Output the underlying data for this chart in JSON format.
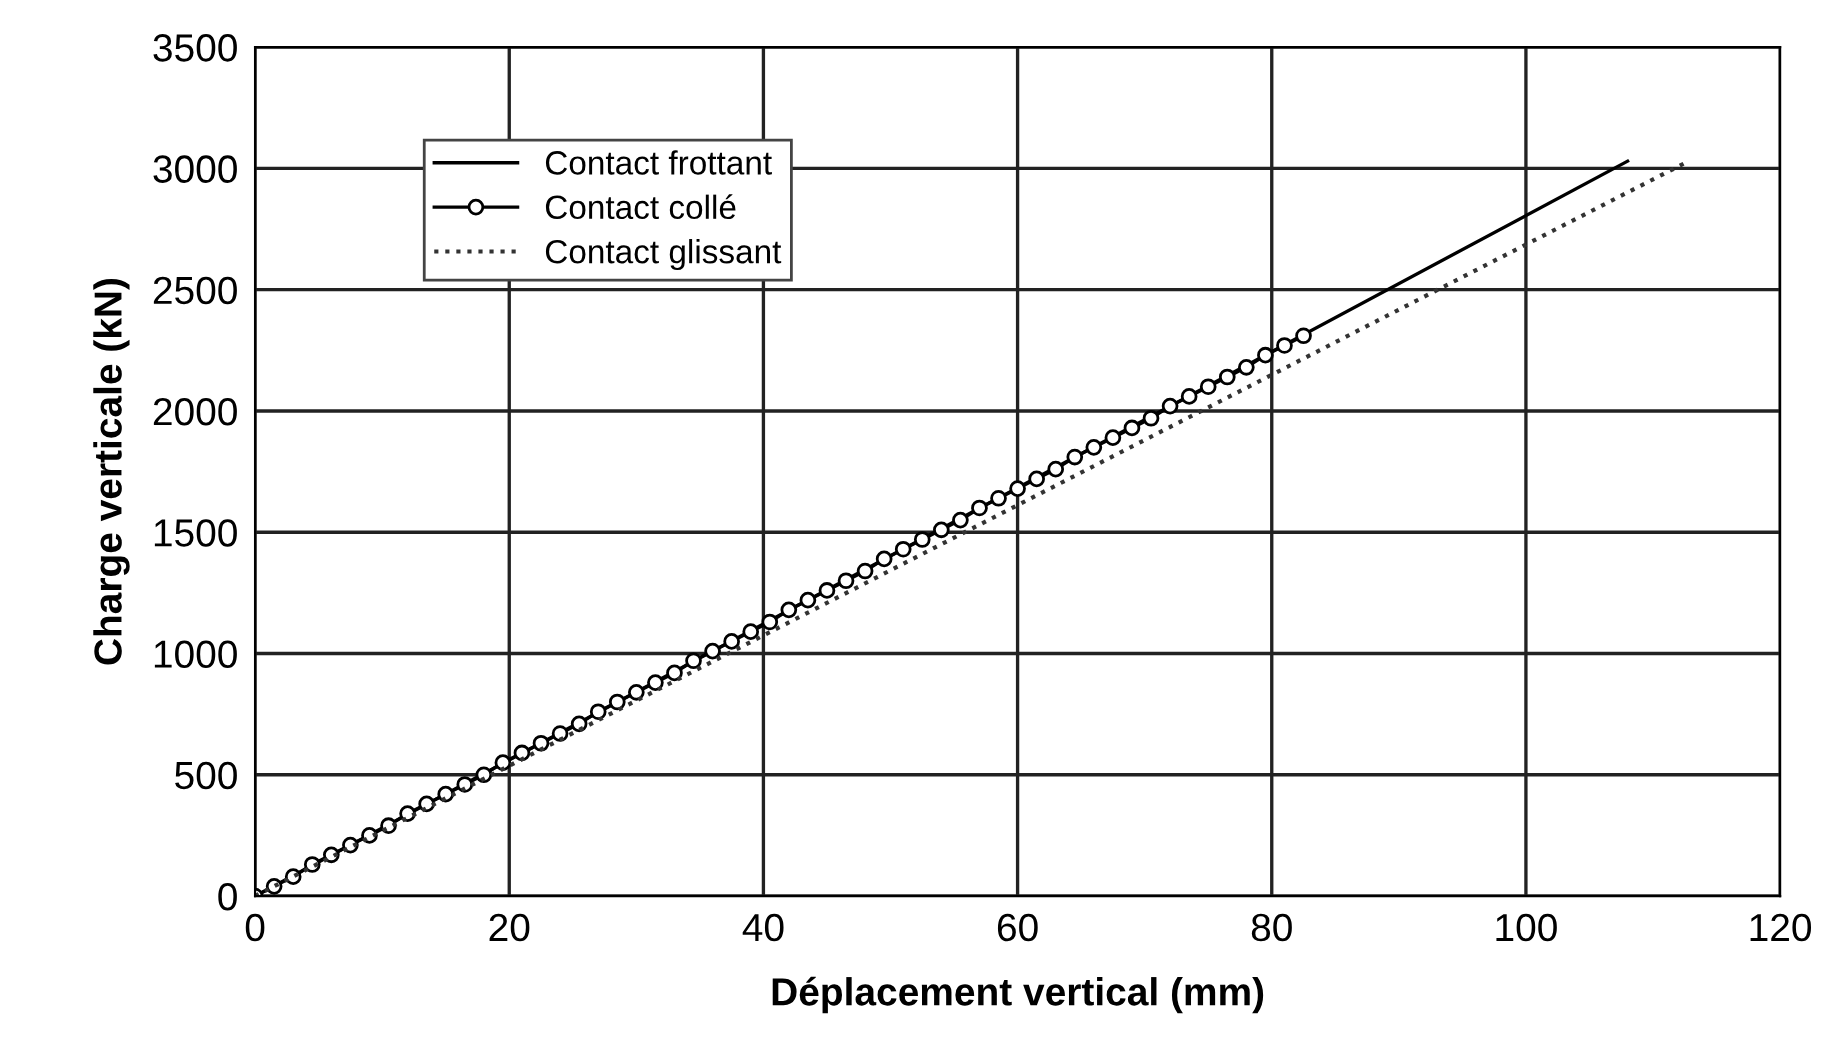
{
  "chart_data": {
    "type": "line",
    "xlabel": "Déplacement vertical (mm)",
    "ylabel": "Charge verticale (kN)",
    "xlim": [
      0,
      120
    ],
    "xticks": [
      0,
      20,
      40,
      60,
      80,
      100,
      120
    ],
    "ylim": [
      0,
      3500
    ],
    "yticks": [
      0,
      500,
      1000,
      1500,
      2000,
      2500,
      3000,
      3500
    ],
    "grid": true,
    "legend": "top left",
    "series": [
      {
        "name": "Contact frottant",
        "color": "#000000",
        "line_style": "solid",
        "x": [
          0,
          108
        ],
        "values": [
          0,
          3030
        ]
      },
      {
        "name": "Contact collé",
        "color": "#000000",
        "line_style": "solid",
        "marker": "circle",
        "x": [
          0,
          1.5,
          3,
          4.5,
          6,
          7.5,
          9,
          10.5,
          12,
          13.5,
          15,
          16.5,
          18,
          19.5,
          21,
          22.5,
          24,
          25.5,
          27,
          28.5,
          30,
          31.5,
          33,
          34.5,
          36,
          37.5,
          39,
          40.5,
          42,
          43.5,
          45,
          46.5,
          48,
          49.5,
          51,
          52.5,
          54,
          55.5,
          57,
          58.5,
          60,
          61.5,
          63,
          64.5,
          66,
          67.5,
          69,
          70.5,
          72,
          73.5,
          75,
          76.5,
          78,
          79.5,
          81,
          82.5
        ],
        "values": [
          0,
          40,
          80,
          130,
          170,
          210,
          250,
          290,
          340,
          380,
          420,
          460,
          500,
          550,
          590,
          630,
          670,
          710,
          760,
          800,
          840,
          880,
          920,
          970,
          1010,
          1050,
          1090,
          1130,
          1180,
          1220,
          1260,
          1300,
          1340,
          1390,
          1430,
          1470,
          1510,
          1550,
          1600,
          1640,
          1680,
          1720,
          1760,
          1810,
          1850,
          1890,
          1930,
          1970,
          2020,
          2060,
          2100,
          2140,
          2180,
          2230,
          2270,
          2310
        ]
      },
      {
        "name": "Contact glissant",
        "color": "#333333",
        "line_style": "dotted",
        "x": [
          0,
          112.8
        ],
        "values": [
          0,
          3030
        ]
      }
    ]
  }
}
